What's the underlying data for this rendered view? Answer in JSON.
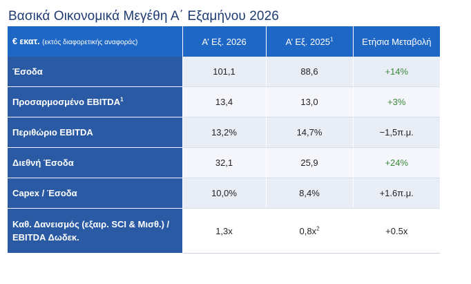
{
  "title": "Βασικά Οικονομικά Μεγέθη Α΄ Εξαμήνου 2026",
  "header": {
    "unit_label": "€ εκατ.",
    "unit_note": "(εκτός διαφορετικής αναφοράς)",
    "col1": "Α’ Εξ. 2026",
    "col2": "Α’ Εξ. 2025",
    "col2_sup": "1",
    "col3": "Ετήσια Μεταβολή"
  },
  "rows": [
    {
      "label": "Έσοδα",
      "label_sup": "",
      "v2026": "101,1",
      "v2025": "88,6",
      "v2025_sup": "",
      "change": "+14%",
      "change_color": "#3a8a3a"
    },
    {
      "label": "Προσαρμοσμένο EBITDA",
      "label_sup": "1",
      "v2026": "13,4",
      "v2025": "13,0",
      "v2025_sup": "",
      "change": "+3%",
      "change_color": "#3a8a3a"
    },
    {
      "label": "Περιθώριο EBITDA",
      "label_sup": "",
      "v2026": "13,2%",
      "v2025": "14,7%",
      "v2025_sup": "",
      "change": "−1,5π.μ.",
      "change_color": "#222222"
    },
    {
      "label": "Διεθνή Έσοδα",
      "label_sup": "",
      "v2026": "32,1",
      "v2025": "25,9",
      "v2025_sup": "",
      "change": "+24%",
      "change_color": "#3a8a3a"
    },
    {
      "label": "Capex / Έσοδα",
      "label_sup": "",
      "v2026": "10,0%",
      "v2025": "8,4%",
      "v2025_sup": "",
      "change": "+1.6π.μ.",
      "change_color": "#222222"
    },
    {
      "label": "Καθ. Δανεισμός (εξαιρ. SCI & Μισθ.) / EBITDA Δωδεκ.",
      "label_sup": "",
      "v2026": "1,3x",
      "v2025": "0,8x",
      "v2025_sup": "2",
      "change": "+0.5x",
      "change_color": "#222222"
    }
  ]
}
